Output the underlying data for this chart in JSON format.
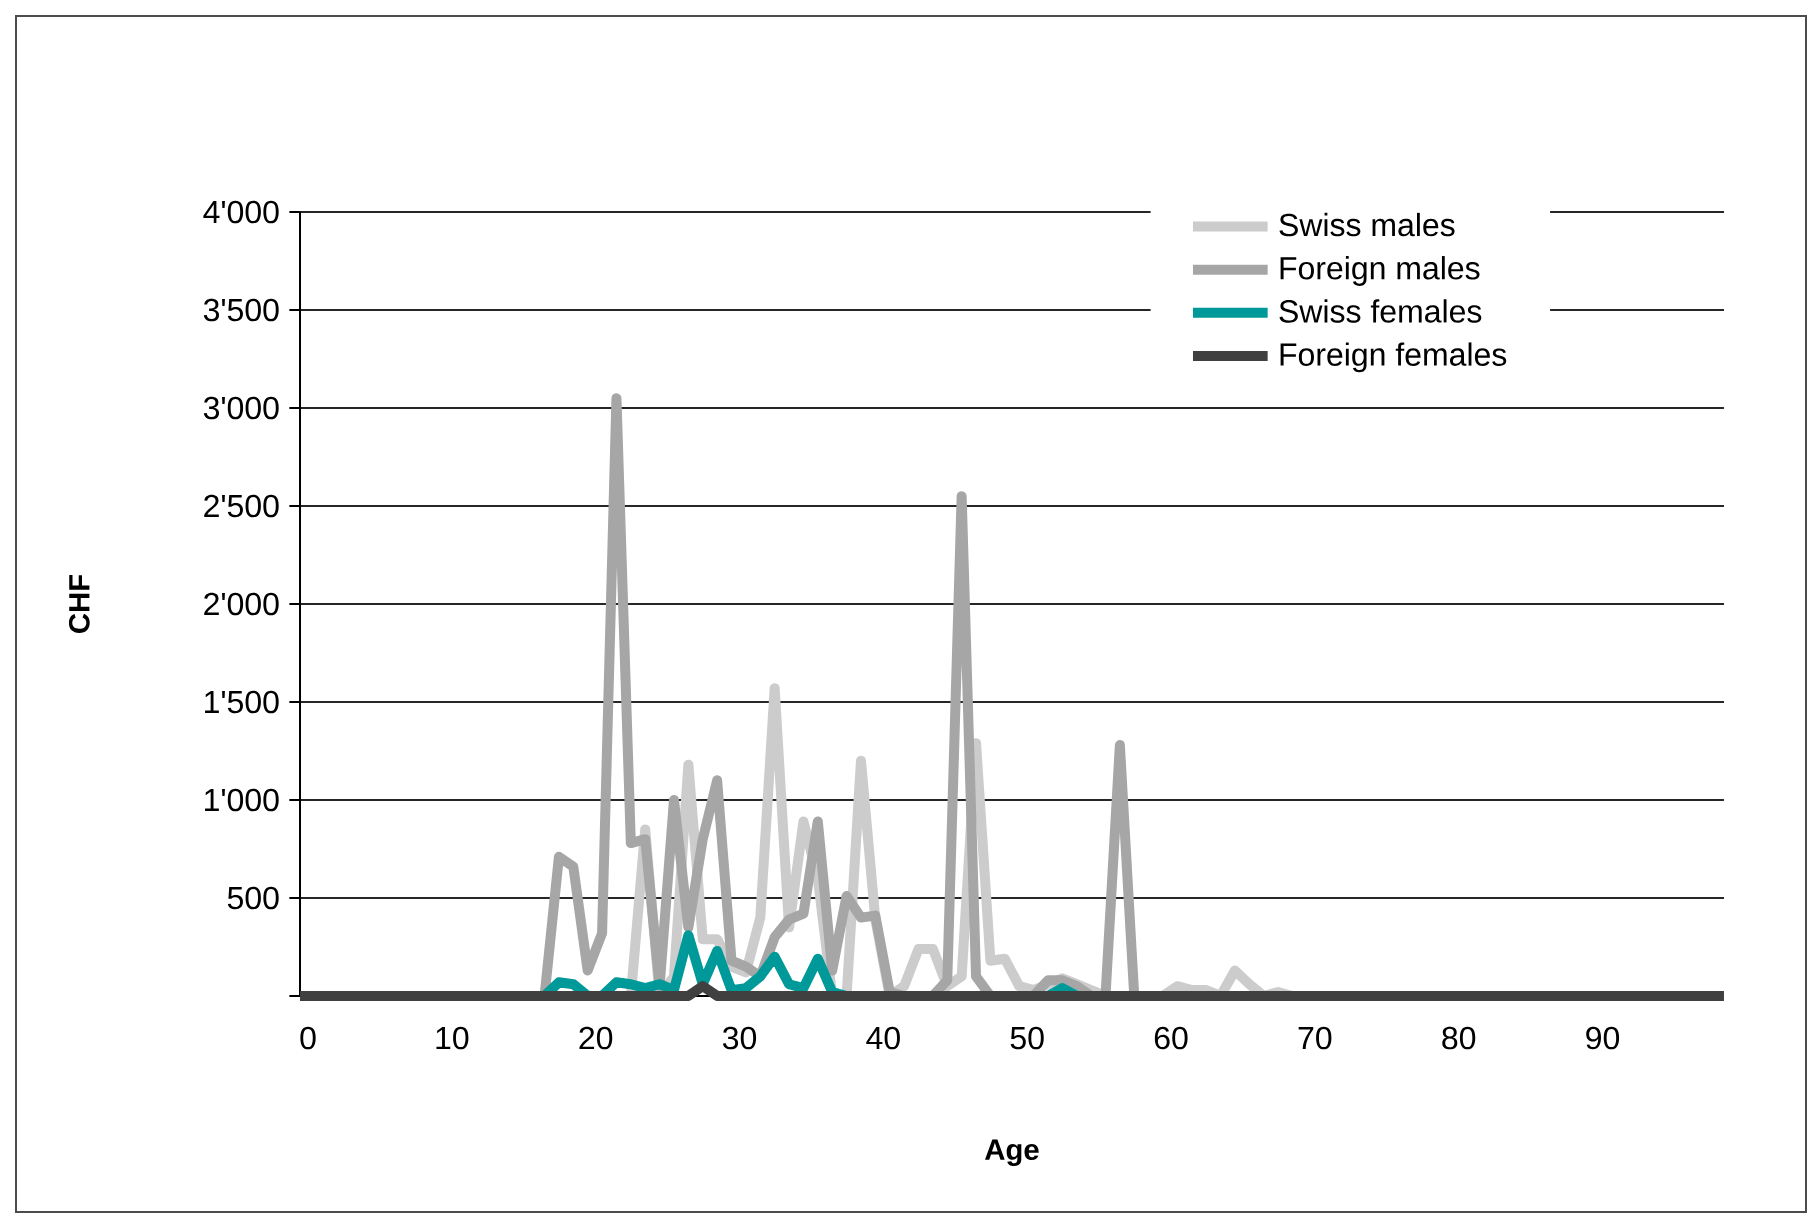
{
  "chart_data": {
    "type": "line",
    "xlabel": "Age",
    "ylabel": "CHF",
    "x": [
      0,
      1,
      2,
      3,
      4,
      5,
      6,
      7,
      8,
      9,
      10,
      11,
      12,
      13,
      14,
      15,
      16,
      17,
      18,
      19,
      20,
      21,
      22,
      23,
      24,
      25,
      26,
      27,
      28,
      29,
      30,
      31,
      32,
      33,
      34,
      35,
      36,
      37,
      38,
      39,
      40,
      41,
      42,
      43,
      44,
      45,
      46,
      47,
      48,
      49,
      50,
      51,
      52,
      53,
      54,
      55,
      56,
      57,
      58,
      59,
      60,
      61,
      62,
      63,
      64,
      65,
      66,
      67,
      68,
      69,
      70,
      71,
      72,
      73,
      74,
      75,
      76,
      77,
      78,
      79,
      80,
      81,
      82,
      83,
      84,
      85,
      86,
      87,
      88,
      89,
      90,
      91,
      92,
      93,
      94,
      95,
      96,
      97,
      98,
      99
    ],
    "series": [
      {
        "name": "Swiss males",
        "color": "#cccccc",
        "values": [
          null,
          null,
          null,
          null,
          null,
          null,
          null,
          null,
          null,
          null,
          null,
          null,
          null,
          null,
          null,
          null,
          null,
          null,
          null,
          null,
          null,
          null,
          null,
          0,
          850,
          0,
          100,
          1180,
          290,
          290,
          150,
          120,
          400,
          1570,
          350,
          890,
          600,
          0,
          0,
          1200,
          390,
          0,
          50,
          240,
          240,
          50,
          100,
          1290,
          180,
          190,
          50,
          30,
          60,
          90,
          60,
          30,
          0,
          null,
          null,
          null,
          0,
          50,
          30,
          30,
          0,
          130,
          60,
          0,
          20,
          0,
          null,
          null,
          null,
          null,
          null,
          null,
          null,
          null,
          null,
          null,
          null,
          null,
          null,
          null,
          null,
          null,
          null,
          null,
          null,
          null,
          null,
          null,
          null,
          null,
          null,
          null,
          null,
          null,
          null,
          null
        ]
      },
      {
        "name": "Foreign males",
        "color": "#a6a6a6",
        "values": [
          null,
          null,
          null,
          null,
          null,
          null,
          null,
          null,
          null,
          null,
          null,
          null,
          null,
          null,
          null,
          null,
          null,
          0,
          710,
          660,
          130,
          320,
          3050,
          780,
          800,
          50,
          1000,
          350,
          800,
          1100,
          180,
          150,
          100,
          300,
          390,
          420,
          890,
          130,
          510,
          400,
          410,
          20,
          0,
          null,
          0,
          80,
          2550,
          100,
          0,
          null,
          null,
          0,
          80,
          80,
          50,
          0,
          0,
          1280,
          0,
          null,
          null,
          null,
          null,
          null,
          null,
          null,
          null,
          null,
          null,
          null,
          null,
          null,
          null,
          null,
          null,
          null,
          null,
          null,
          null,
          null,
          null,
          null,
          null,
          null,
          null,
          null,
          null,
          null,
          null,
          null,
          null,
          null,
          null,
          null,
          null,
          null,
          null,
          null,
          null,
          null
        ]
      },
      {
        "name": "Swiss females",
        "color": "#009999",
        "values": [
          null,
          null,
          null,
          null,
          null,
          null,
          null,
          null,
          null,
          null,
          null,
          null,
          null,
          null,
          null,
          null,
          null,
          0,
          70,
          60,
          0,
          0,
          70,
          60,
          40,
          60,
          30,
          310,
          60,
          230,
          30,
          40,
          100,
          200,
          60,
          40,
          190,
          20,
          0,
          null,
          null,
          null,
          null,
          null,
          null,
          null,
          null,
          null,
          null,
          null,
          null,
          null,
          0,
          40,
          0,
          null,
          null,
          null,
          null,
          null,
          null,
          null,
          null,
          null,
          null,
          null,
          null,
          null,
          null,
          null,
          null,
          null,
          null,
          null,
          null,
          null,
          null,
          null,
          null,
          null,
          null,
          null,
          null,
          null,
          null,
          null,
          null,
          null,
          null,
          null,
          null,
          null,
          null,
          null,
          null,
          null,
          null,
          null,
          null,
          null
        ]
      },
      {
        "name": "Foreign females",
        "color": "#404040",
        "values": [
          0,
          0,
          0,
          0,
          0,
          0,
          0,
          0,
          0,
          0,
          0,
          0,
          0,
          0,
          0,
          0,
          0,
          0,
          0,
          0,
          0,
          0,
          0,
          0,
          0,
          0,
          0,
          0,
          50,
          0,
          0,
          0,
          0,
          0,
          0,
          0,
          0,
          0,
          0,
          0,
          0,
          0,
          0,
          0,
          0,
          0,
          0,
          0,
          0,
          0,
          0,
          0,
          0,
          0,
          0,
          0,
          0,
          0,
          0,
          0,
          0,
          0,
          0,
          0,
          0,
          0,
          0,
          0,
          0,
          0,
          0,
          0,
          0,
          0,
          0,
          0,
          0,
          0,
          0,
          0,
          0,
          0,
          0,
          0,
          0,
          0,
          0,
          0,
          0,
          0,
          0,
          0,
          0,
          0,
          0,
          0,
          0,
          0,
          0,
          0
        ]
      }
    ],
    "xlim": [
      0,
      99
    ],
    "xticks": [
      0,
      10,
      20,
      30,
      40,
      50,
      60,
      70,
      80,
      90
    ],
    "ylim": [
      0,
      4000
    ],
    "yticks": [
      {
        "value": 0,
        "label": null
      },
      {
        "value": 500,
        "label": "500"
      },
      {
        "value": 1000,
        "label": "1'000"
      },
      {
        "value": 1500,
        "label": "1'500"
      },
      {
        "value": 2000,
        "label": "2'000"
      },
      {
        "value": 2500,
        "label": "2'500"
      },
      {
        "value": 3000,
        "label": "3'000"
      },
      {
        "value": 3500,
        "label": "3'500"
      },
      {
        "value": 4000,
        "label": "4'000"
      }
    ],
    "grid": "y",
    "legend": "top right",
    "marker": "none",
    "line_style": "solid"
  }
}
